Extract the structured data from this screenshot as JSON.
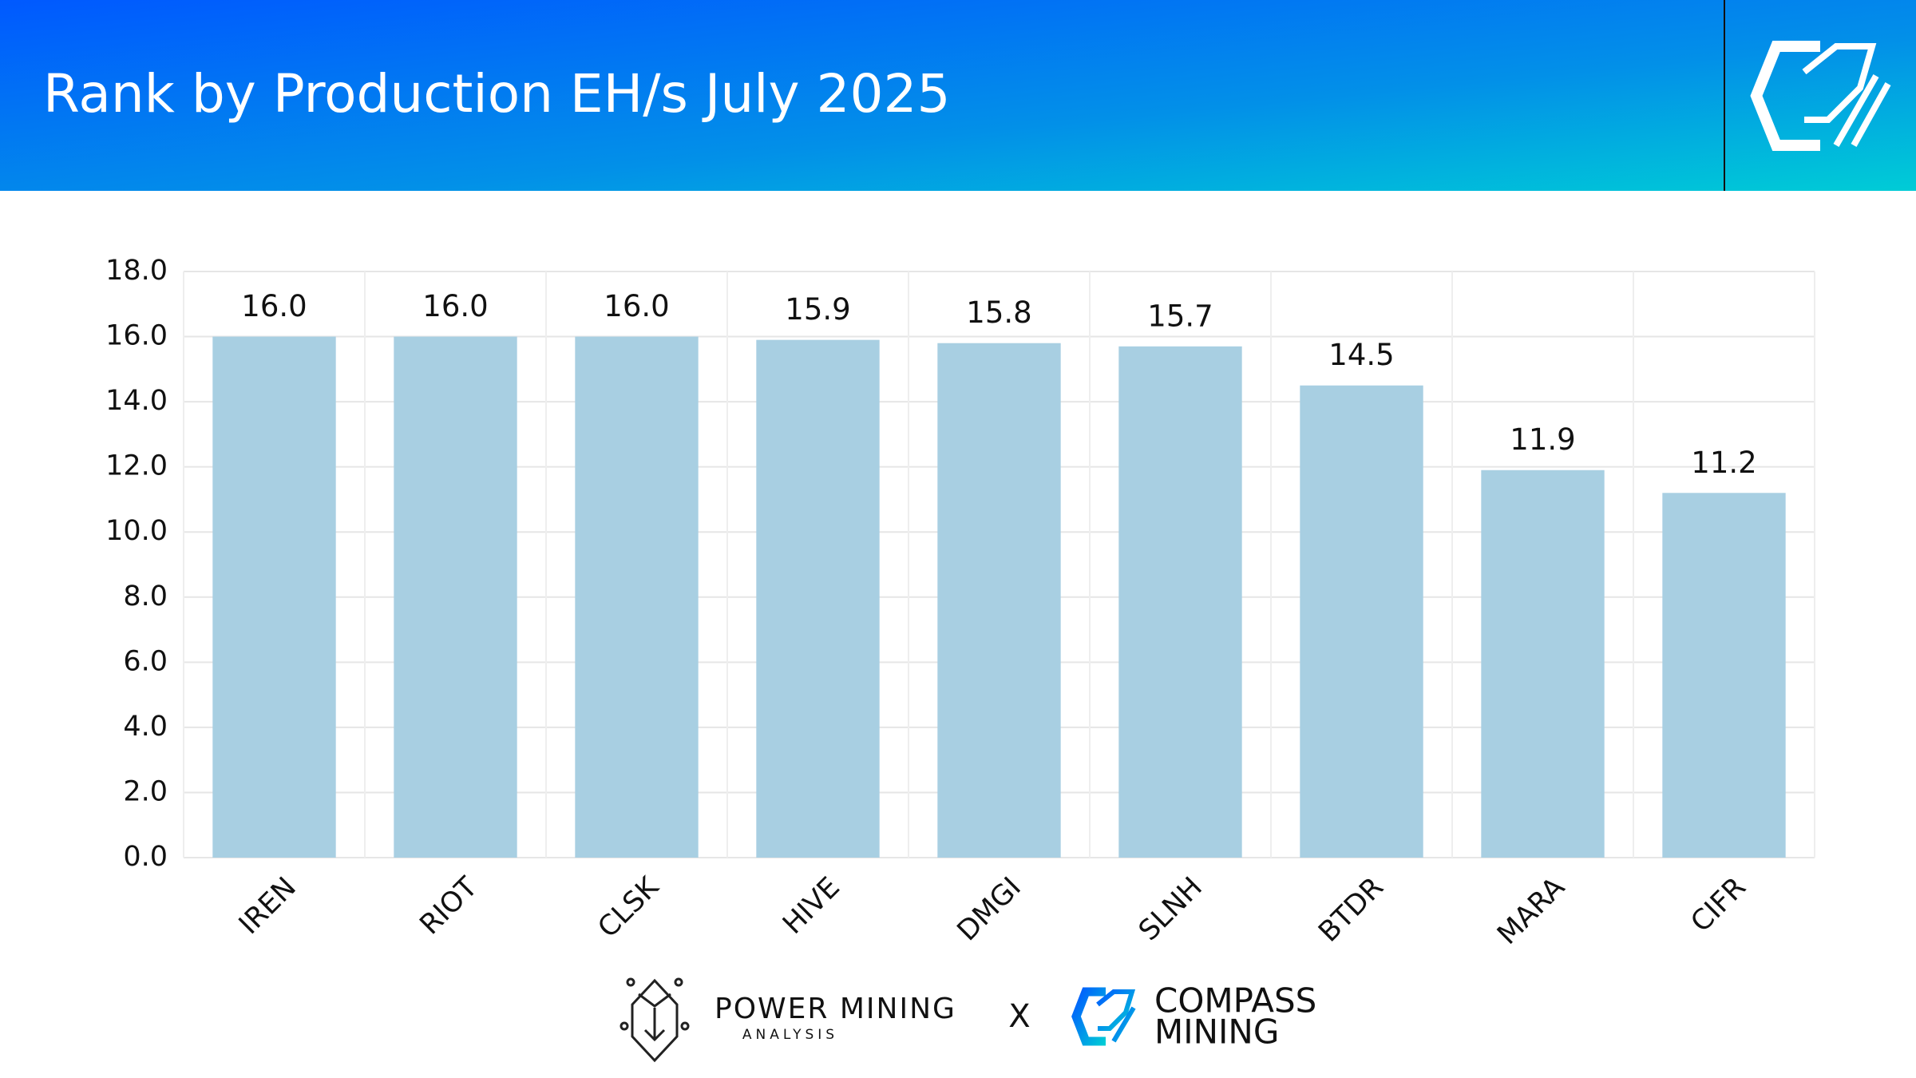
{
  "chart_data": {
    "type": "bar",
    "title": "Rank by Production EH/s July 2025",
    "categories": [
      "IREN",
      "RIOT",
      "CLSK",
      "HIVE",
      "DMGI",
      "SLNH",
      "BTDR",
      "MARA",
      "CIFR"
    ],
    "values": [
      16.0,
      16.0,
      16.0,
      15.9,
      15.8,
      15.7,
      14.5,
      11.9,
      11.2
    ],
    "value_labels": [
      "16.0",
      "16.0",
      "16.0",
      "15.9",
      "15.8",
      "15.7",
      "14.5",
      "11.9",
      "11.2"
    ],
    "color": "#a8cfe2",
    "ylim": [
      0,
      18
    ],
    "yticks": [
      {
        "value": 0,
        "label": "0.0"
      },
      {
        "value": 2,
        "label": "2.0"
      },
      {
        "value": 4,
        "label": "4.0"
      },
      {
        "value": 6,
        "label": "6.0"
      },
      {
        "value": 8,
        "label": "8.0"
      },
      {
        "value": 10,
        "label": "10.0"
      },
      {
        "value": 12,
        "label": "12.0"
      },
      {
        "value": 14,
        "label": "14.0"
      },
      {
        "value": 16,
        "label": "16.0"
      },
      {
        "value": 18,
        "label": "18.0"
      }
    ],
    "grid": true
  },
  "footer": {
    "left_brand": "POWER MINING",
    "left_sub": "ANALYSIS",
    "separator": "X",
    "right_brand_1": "COMPASS",
    "right_brand_2": "MINING"
  }
}
